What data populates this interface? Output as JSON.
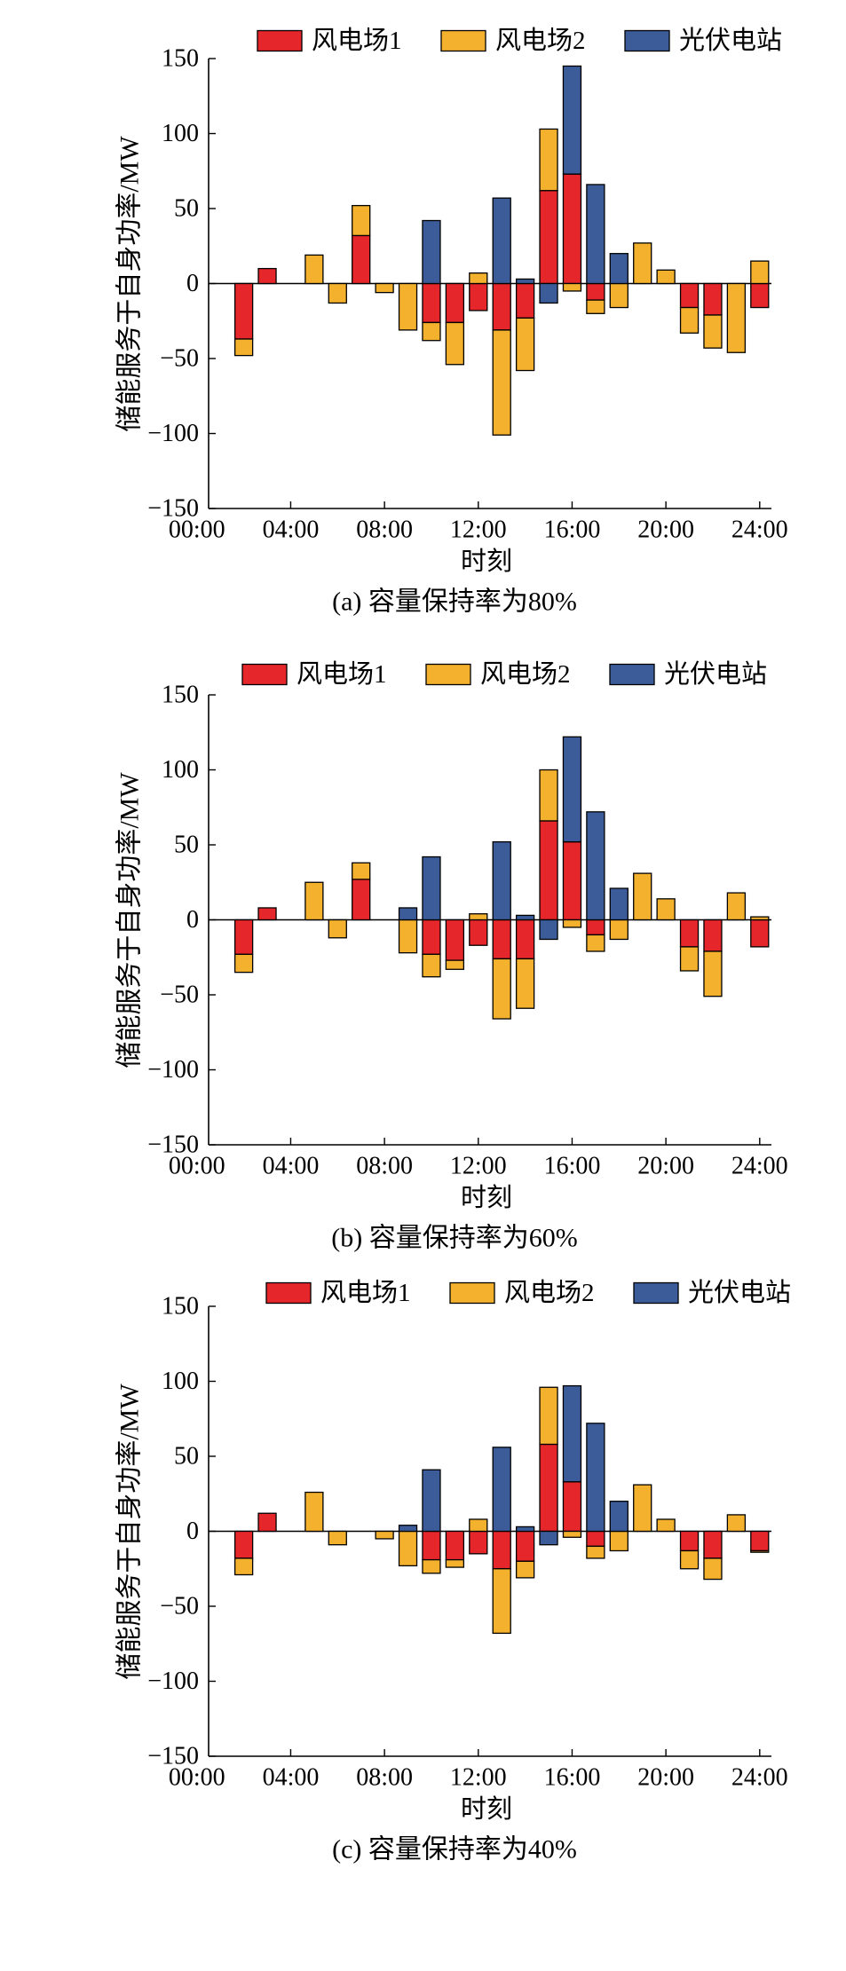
{
  "chart_data": [
    {
      "type": "bar",
      "stacked": true,
      "caption": "(a) 容量保持率为80%",
      "xlabel": "时刻",
      "ylabel": "储能服务于自身功率/MW",
      "x": [
        "01:00",
        "02:00",
        "03:00",
        "04:00",
        "05:00",
        "06:00",
        "07:00",
        "08:00",
        "09:00",
        "10:00",
        "11:00",
        "12:00",
        "13:00",
        "14:00",
        "15:00",
        "16:00",
        "17:00",
        "18:00",
        "19:00",
        "20:00",
        "21:00",
        "22:00",
        "23:00",
        "24:00"
      ],
      "xlim": [
        "00:30",
        "24:30"
      ],
      "xtick_labels": [
        "00:00",
        "04:00",
        "08:00",
        "12:00",
        "16:00",
        "20:00",
        "24:00"
      ],
      "ylim": [
        -150,
        150
      ],
      "yticks": [
        150,
        100,
        50,
        0,
        -50,
        -100,
        -150
      ],
      "ytick_labels": [
        "150",
        "100",
        "50",
        "0",
        "−50",
        "−100",
        "−150"
      ],
      "legend_position": "top",
      "grid": false,
      "series": [
        {
          "name": "风电场1",
          "color": "#e5262a",
          "values": [
            0,
            -37,
            10,
            0,
            0,
            0,
            32,
            0,
            0,
            -26,
            -26,
            -18,
            -31,
            -23,
            62,
            73,
            -11,
            0,
            0,
            0,
            -16,
            -21,
            0,
            -16
          ]
        },
        {
          "name": "风电场2",
          "color": "#f3b12e",
          "values": [
            0,
            -11,
            0,
            0,
            19,
            -13,
            20,
            -6,
            -31,
            -12,
            -28,
            7,
            -70,
            -35,
            41,
            -5,
            -9,
            -16,
            27,
            9,
            -17,
            -22,
            -46,
            15
          ]
        },
        {
          "name": "光伏电站",
          "color": "#3b5c99",
          "values": [
            0,
            0,
            0,
            0,
            0,
            0,
            0,
            0,
            0,
            42,
            0,
            0,
            57,
            3,
            -13,
            72,
            66,
            20,
            0,
            0,
            0,
            0,
            0,
            0
          ]
        }
      ]
    },
    {
      "type": "bar",
      "stacked": true,
      "caption": "(b) 容量保持率为60%",
      "xlabel": "时刻",
      "ylabel": "储能服务于自身功率/MW",
      "x": [
        "01:00",
        "02:00",
        "03:00",
        "04:00",
        "05:00",
        "06:00",
        "07:00",
        "08:00",
        "09:00",
        "10:00",
        "11:00",
        "12:00",
        "13:00",
        "14:00",
        "15:00",
        "16:00",
        "17:00",
        "18:00",
        "19:00",
        "20:00",
        "21:00",
        "22:00",
        "23:00",
        "24:00"
      ],
      "xlim": [
        "00:30",
        "24:30"
      ],
      "xtick_labels": [
        "00:00",
        "04:00",
        "08:00",
        "12:00",
        "16:00",
        "20:00",
        "24:00"
      ],
      "ylim": [
        -150,
        150
      ],
      "yticks": [
        150,
        100,
        50,
        0,
        -50,
        -100,
        -150
      ],
      "ytick_labels": [
        "150",
        "100",
        "50",
        "0",
        "−50",
        "−100",
        "−150"
      ],
      "legend_position": "top",
      "grid": false,
      "series": [
        {
          "name": "风电场1",
          "color": "#e5262a",
          "values": [
            0,
            -23,
            8,
            0,
            0,
            0,
            27,
            0,
            0,
            -23,
            -27,
            -17,
            -26,
            -26,
            66,
            52,
            -10,
            0,
            0,
            0,
            -18,
            -21,
            0,
            -18
          ]
        },
        {
          "name": "风电场2",
          "color": "#f3b12e",
          "values": [
            0,
            -12,
            0,
            0,
            25,
            -12,
            11,
            0,
            -22,
            -15,
            -6,
            4,
            -40,
            -33,
            34,
            -5,
            -11,
            -13,
            31,
            14,
            -16,
            -30,
            18,
            2
          ]
        },
        {
          "name": "光伏电站",
          "color": "#3b5c99",
          "values": [
            0,
            0,
            0,
            0,
            0,
            0,
            0,
            0,
            8,
            42,
            0,
            0,
            52,
            3,
            -13,
            70,
            72,
            21,
            0,
            0,
            0,
            0,
            0,
            0
          ]
        }
      ]
    },
    {
      "type": "bar",
      "stacked": true,
      "caption": "(c) 容量保持率为40%",
      "xlabel": "时刻",
      "ylabel": "储能服务于自身功率/MW",
      "x": [
        "01:00",
        "02:00",
        "03:00",
        "04:00",
        "05:00",
        "06:00",
        "07:00",
        "08:00",
        "09:00",
        "10:00",
        "11:00",
        "12:00",
        "13:00",
        "14:00",
        "15:00",
        "16:00",
        "17:00",
        "18:00",
        "19:00",
        "20:00",
        "21:00",
        "22:00",
        "23:00",
        "24:00"
      ],
      "xlim": [
        "00:30",
        "24:30"
      ],
      "xtick_labels": [
        "00:00",
        "04:00",
        "08:00",
        "12:00",
        "16:00",
        "20:00",
        "24:00"
      ],
      "ylim": [
        -150,
        150
      ],
      "yticks": [
        150,
        100,
        50,
        0,
        -50,
        -100,
        -150
      ],
      "ytick_labels": [
        "150",
        "100",
        "50",
        "0",
        "−50",
        "−100",
        "−150"
      ],
      "legend_position": "top",
      "grid": false,
      "series": [
        {
          "name": "风电场1",
          "color": "#e5262a",
          "values": [
            0,
            -18,
            12,
            0,
            0,
            0,
            0,
            0,
            0,
            -19,
            -19,
            -15,
            -25,
            -20,
            58,
            33,
            -10,
            0,
            0,
            0,
            -13,
            -18,
            0,
            -13
          ]
        },
        {
          "name": "风电场2",
          "color": "#f3b12e",
          "values": [
            0,
            -11,
            0,
            0,
            26,
            -9,
            0,
            -5,
            -23,
            -9,
            -5,
            8,
            -43,
            -11,
            38,
            -4,
            -8,
            -13,
            31,
            8,
            -12,
            -14,
            11,
            -1
          ]
        },
        {
          "name": "光伏电站",
          "color": "#3b5c99",
          "values": [
            0,
            0,
            0,
            0,
            0,
            0,
            0,
            0,
            4,
            41,
            0,
            0,
            56,
            3,
            -9,
            64,
            72,
            20,
            0,
            0,
            0,
            0,
            0,
            0
          ]
        }
      ]
    }
  ]
}
